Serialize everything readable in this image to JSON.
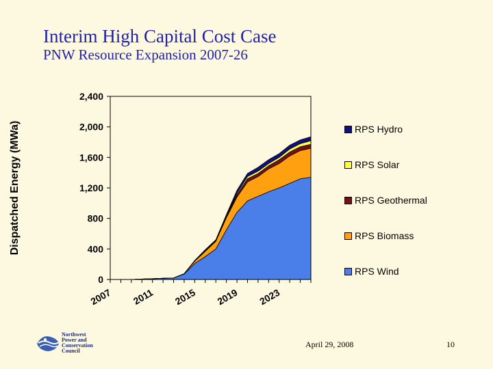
{
  "slide": {
    "title": "Interim High Capital Cost Case",
    "subtitle": "PNW Resource Expansion 2007-26",
    "date": "April 29, 2008",
    "page_number": "10",
    "logo_text": [
      "Northwest",
      "Power and",
      "Conservation",
      "Council"
    ]
  },
  "chart_data": {
    "type": "area",
    "stacked": true,
    "x": [
      2007,
      2008,
      2009,
      2010,
      2011,
      2012,
      2013,
      2014,
      2015,
      2016,
      2017,
      2018,
      2019,
      2020,
      2021,
      2022,
      2023,
      2024,
      2025,
      2026
    ],
    "xticks": [
      "2007",
      "2011",
      "2015",
      "2019",
      "2023"
    ],
    "ylabel": "Dispatched Energy (MWa)",
    "ylim": [
      0,
      2400
    ],
    "yticks": [
      "0",
      "400",
      "800",
      "1,200",
      "1,600",
      "2,000",
      "2,400"
    ],
    "grid": false,
    "legend_position": "right",
    "series": [
      {
        "name": "RPS Wind",
        "color": "#4a7ee8",
        "values": [
          0,
          0,
          0,
          5,
          10,
          15,
          20,
          70,
          210,
          300,
          400,
          650,
          880,
          1030,
          1090,
          1150,
          1200,
          1260,
          1320,
          1340
        ]
      },
      {
        "name": "RPS Biomass",
        "color": "#ffa010",
        "values": [
          0,
          0,
          0,
          0,
          0,
          0,
          0,
          5,
          30,
          70,
          100,
          160,
          200,
          250,
          260,
          300,
          320,
          360,
          370,
          380
        ]
      },
      {
        "name": "RPS Geothermal",
        "color": "#7a1010",
        "values": [
          0,
          0,
          0,
          0,
          0,
          0,
          0,
          0,
          5,
          10,
          10,
          20,
          30,
          40,
          40,
          40,
          50,
          50,
          50,
          50
        ]
      },
      {
        "name": "RPS Solar",
        "color": "#ffff40",
        "values": [
          0,
          0,
          0,
          0,
          0,
          0,
          0,
          0,
          0,
          5,
          5,
          10,
          20,
          30,
          30,
          30,
          30,
          40,
          40,
          50
        ]
      },
      {
        "name": "RPS Hydro",
        "color": "#101080",
        "values": [
          0,
          0,
          0,
          0,
          0,
          0,
          0,
          0,
          5,
          5,
          5,
          10,
          40,
          40,
          50,
          50,
          50,
          50,
          50,
          50
        ]
      }
    ]
  },
  "colors": {
    "title": "#1f1fa8",
    "background": "#fdf9e0"
  }
}
